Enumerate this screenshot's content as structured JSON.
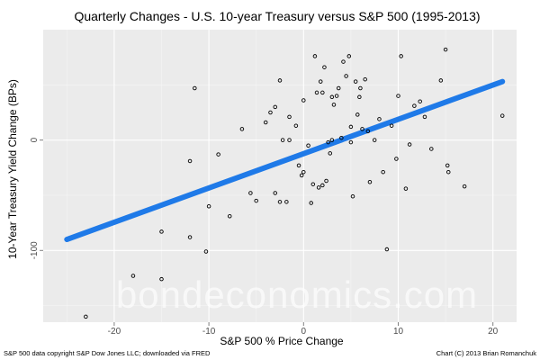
{
  "chart_data": {
    "type": "scatter",
    "title": "Quarterly Changes - U.S. 10-year Treasury versus S&P 500 (1995-2013)",
    "xlabel": "S&P 500 % Price Change",
    "ylabel": "10-Year Treasury Yield Change (BPs)",
    "xlim": [
      -27.5,
      22.5
    ],
    "ylim": [
      -165,
      100
    ],
    "x_ticks": [
      -20,
      -10,
      0,
      10,
      20
    ],
    "y_ticks": [
      -100,
      0
    ],
    "grid": true,
    "regression_line": {
      "x": [
        -25,
        21
      ],
      "y": [
        -90,
        53
      ],
      "color": "#1f7ae8"
    },
    "points": [
      {
        "x": -23,
        "y": -160
      },
      {
        "x": -18,
        "y": -123
      },
      {
        "x": -15,
        "y": -126
      },
      {
        "x": -15,
        "y": -83
      },
      {
        "x": -12,
        "y": -88
      },
      {
        "x": -12,
        "y": -19
      },
      {
        "x": -11.5,
        "y": 47
      },
      {
        "x": -10.3,
        "y": -101
      },
      {
        "x": -10,
        "y": -60
      },
      {
        "x": -9,
        "y": -13
      },
      {
        "x": -7.8,
        "y": -69
      },
      {
        "x": -6.5,
        "y": 10
      },
      {
        "x": -4,
        "y": 16
      },
      {
        "x": -3.5,
        "y": 25
      },
      {
        "x": -3,
        "y": -48
      },
      {
        "x": -3,
        "y": 30
      },
      {
        "x": -2.5,
        "y": 54
      },
      {
        "x": -2.5,
        "y": -56
      },
      {
        "x": -2.2,
        "y": 0
      },
      {
        "x": -1.8,
        "y": -56
      },
      {
        "x": -1.5,
        "y": 0
      },
      {
        "x": -1.5,
        "y": 21
      },
      {
        "x": -0.8,
        "y": 13
      },
      {
        "x": -0.5,
        "y": -23
      },
      {
        "x": -0.2,
        "y": -32
      },
      {
        "x": 0,
        "y": -29
      },
      {
        "x": 0,
        "y": 36
      },
      {
        "x": 0.5,
        "y": -5
      },
      {
        "x": 0.8,
        "y": -57
      },
      {
        "x": 1,
        "y": -40
      },
      {
        "x": 1.2,
        "y": 76
      },
      {
        "x": 1.4,
        "y": 43
      },
      {
        "x": 1.6,
        "y": -43
      },
      {
        "x": 1.8,
        "y": 53
      },
      {
        "x": 2,
        "y": 43
      },
      {
        "x": 2,
        "y": -41
      },
      {
        "x": 2.2,
        "y": 66
      },
      {
        "x": 2.4,
        "y": -37
      },
      {
        "x": 2.6,
        "y": -2
      },
      {
        "x": 2.8,
        "y": -12
      },
      {
        "x": 3,
        "y": 39
      },
      {
        "x": 3,
        "y": 0
      },
      {
        "x": 3.2,
        "y": 32
      },
      {
        "x": 3.5,
        "y": 40
      },
      {
        "x": 3.7,
        "y": 47
      },
      {
        "x": 4,
        "y": 2
      },
      {
        "x": 4.2,
        "y": 71
      },
      {
        "x": 4.5,
        "y": 58
      },
      {
        "x": 4.8,
        "y": 76
      },
      {
        "x": 5,
        "y": 12
      },
      {
        "x": 5,
        "y": -2
      },
      {
        "x": 5.2,
        "y": -51
      },
      {
        "x": 5.5,
        "y": 53
      },
      {
        "x": 5.7,
        "y": 23
      },
      {
        "x": 5.9,
        "y": 39
      },
      {
        "x": 6,
        "y": 47
      },
      {
        "x": 6.2,
        "y": 10
      },
      {
        "x": 6.5,
        "y": 55
      },
      {
        "x": 6.8,
        "y": 8
      },
      {
        "x": 7,
        "y": -38
      },
      {
        "x": 7.5,
        "y": 0
      },
      {
        "x": 8,
        "y": 19
      },
      {
        "x": 8.4,
        "y": -29
      },
      {
        "x": 8.8,
        "y": -99
      },
      {
        "x": 9.3,
        "y": 13
      },
      {
        "x": 9.8,
        "y": -17
      },
      {
        "x": 10,
        "y": 40
      },
      {
        "x": 10.3,
        "y": 76
      },
      {
        "x": 10.8,
        "y": -44
      },
      {
        "x": 11.2,
        "y": -4
      },
      {
        "x": 11.7,
        "y": 31
      },
      {
        "x": 12.3,
        "y": 35
      },
      {
        "x": 12.8,
        "y": 21
      },
      {
        "x": 13.5,
        "y": -8
      },
      {
        "x": 14.5,
        "y": 54
      },
      {
        "x": 15,
        "y": 82
      },
      {
        "x": 15.2,
        "y": -23
      },
      {
        "x": 15.3,
        "y": -29
      },
      {
        "x": 17,
        "y": -42
      },
      {
        "x": 21,
        "y": 22
      },
      {
        "x": -5,
        "y": -55
      },
      {
        "x": -5.6,
        "y": -48
      }
    ]
  },
  "watermark": "bondeconomics.com",
  "footer": {
    "left": "S&P 500 data copyright S&P Dow Jones LLC; downloaded via FRED",
    "right": "Chart (C) 2013 Brian Romanchuk"
  }
}
